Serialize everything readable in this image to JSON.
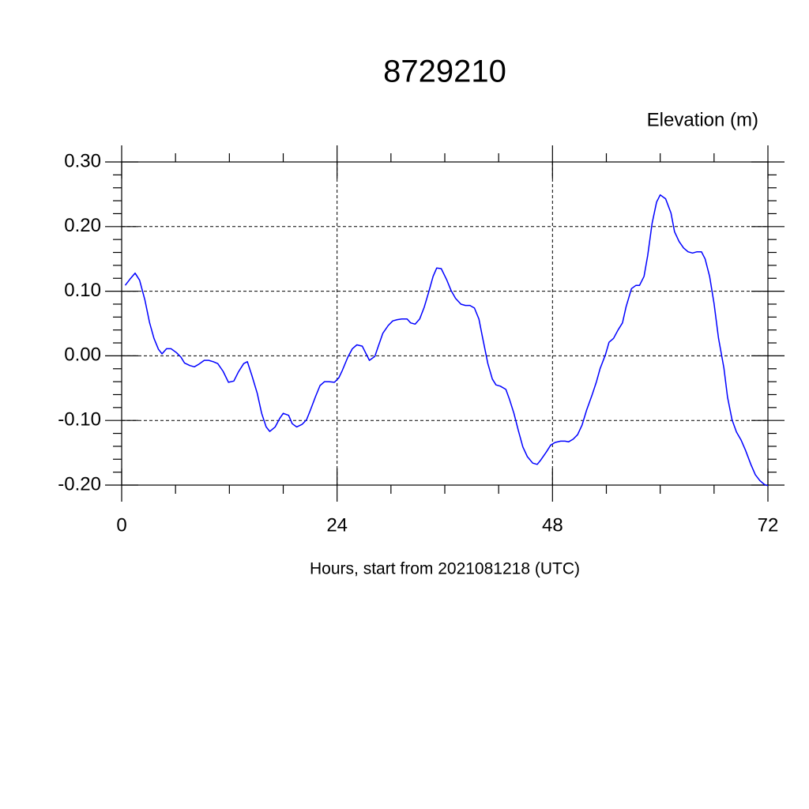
{
  "chart_data": {
    "type": "line",
    "title": "8729210",
    "ylabel": "Elevation (m)",
    "xlabel": "Hours, start from 2021081218 (UTC)",
    "xlim": [
      0,
      72
    ],
    "ylim": [
      -0.2,
      0.3
    ],
    "xticks": [
      0,
      24,
      48,
      72
    ],
    "xminorticks": [
      6,
      12,
      18,
      30,
      36,
      42,
      54,
      60,
      66
    ],
    "yticks": [
      {
        "value": 0.3,
        "label": "0.30"
      },
      {
        "value": 0.2,
        "label": "0.20"
      },
      {
        "value": 0.1,
        "label": "0.10"
      },
      {
        "value": 0,
        "label": "0.00"
      },
      {
        "value": -0.1,
        "label": "-0.10"
      },
      {
        "value": -0.2,
        "label": "-0.20"
      }
    ],
    "yminorticks": [
      0.28,
      0.26,
      0.24,
      0.22,
      0.18,
      0.16,
      0.14,
      0.12,
      0.08,
      0.06,
      0.04,
      0.02,
      -0.02,
      -0.04,
      -0.06,
      -0.08,
      -0.12,
      -0.14,
      -0.16,
      -0.18
    ],
    "grid": true,
    "series": [
      {
        "color": "#0000ff",
        "x": [
          0.4,
          1.0,
          1.5,
          2.0,
          2.6,
          3.1,
          3.6,
          4.1,
          4.5,
          5.0,
          5.5,
          6.1,
          6.6,
          7.0,
          7.6,
          8.1,
          8.6,
          9.2,
          9.7,
          10.2,
          10.7,
          11.3,
          11.9,
          12.5,
          13.0,
          13.6,
          14.0,
          14.5,
          15.1,
          15.6,
          16.1,
          16.5,
          17.1,
          17.6,
          18.0,
          18.6,
          19.0,
          19.5,
          20.1,
          20.6,
          21.0,
          21.6,
          22.1,
          22.6,
          23.1,
          23.7,
          24.2,
          24.6,
          25.2,
          25.7,
          26.2,
          26.8,
          27.2,
          27.6,
          28.2,
          28.6,
          29.1,
          29.7,
          30.2,
          30.7,
          31.2,
          31.8,
          32.2,
          32.7,
          33.2,
          33.7,
          34.2,
          34.7,
          35.1,
          35.6,
          36.2,
          36.7,
          37.2,
          37.8,
          38.3,
          38.8,
          39.3,
          39.8,
          40.2,
          40.8,
          41.3,
          41.7,
          42.2,
          42.8,
          43.2,
          43.7,
          44.2,
          44.7,
          45.2,
          45.8,
          46.3,
          46.7,
          47.3,
          47.8,
          48.3,
          48.9,
          49.4,
          49.8,
          50.3,
          50.8,
          51.3,
          51.8,
          52.4,
          52.9,
          53.3,
          53.9,
          54.3,
          54.8,
          55.3,
          55.8,
          56.2,
          56.8,
          57.3,
          57.7,
          58.2,
          58.6,
          59.1,
          59.6,
          60.0,
          60.6,
          61.2,
          61.6,
          62.1,
          62.6,
          63.1,
          63.6,
          64.1,
          64.6,
          65.0,
          65.5,
          66.0,
          66.5,
          67.1,
          67.5,
          68.0,
          68.5,
          69.0,
          69.5,
          70.1,
          70.6,
          71.1,
          71.6,
          72.0
        ],
        "values": [
          0.109,
          0.12,
          0.128,
          0.117,
          0.086,
          0.052,
          0.027,
          0.01,
          0.003,
          0.011,
          0.011,
          0.005,
          -0.002,
          -0.011,
          -0.015,
          -0.017,
          -0.013,
          -0.007,
          -0.007,
          -0.009,
          -0.012,
          -0.024,
          -0.041,
          -0.039,
          -0.025,
          -0.012,
          -0.009,
          -0.03,
          -0.058,
          -0.089,
          -0.11,
          -0.117,
          -0.11,
          -0.097,
          -0.089,
          -0.092,
          -0.105,
          -0.11,
          -0.106,
          -0.099,
          -0.085,
          -0.063,
          -0.046,
          -0.04,
          -0.04,
          -0.041,
          -0.034,
          -0.022,
          -0.002,
          0.011,
          0.017,
          0.015,
          0.004,
          -0.007,
          -0.001,
          0.015,
          0.035,
          0.047,
          0.054,
          0.056,
          0.057,
          0.057,
          0.051,
          0.049,
          0.057,
          0.075,
          0.098,
          0.123,
          0.136,
          0.135,
          0.118,
          0.101,
          0.089,
          0.08,
          0.078,
          0.078,
          0.074,
          0.057,
          0.029,
          -0.012,
          -0.036,
          -0.045,
          -0.047,
          -0.052,
          -0.067,
          -0.089,
          -0.116,
          -0.141,
          -0.156,
          -0.166,
          -0.168,
          -0.161,
          -0.149,
          -0.138,
          -0.134,
          -0.132,
          -0.132,
          -0.133,
          -0.129,
          -0.122,
          -0.107,
          -0.084,
          -0.061,
          -0.04,
          -0.02,
          0.002,
          0.021,
          0.027,
          0.04,
          0.051,
          0.076,
          0.104,
          0.109,
          0.109,
          0.123,
          0.155,
          0.205,
          0.238,
          0.249,
          0.243,
          0.221,
          0.192,
          0.177,
          0.167,
          0.161,
          0.159,
          0.161,
          0.161,
          0.15,
          0.123,
          0.081,
          0.027,
          -0.019,
          -0.064,
          -0.099,
          -0.118,
          -0.13,
          -0.146,
          -0.168,
          -0.184,
          -0.193,
          -0.199,
          -0.201
        ]
      }
    ]
  }
}
